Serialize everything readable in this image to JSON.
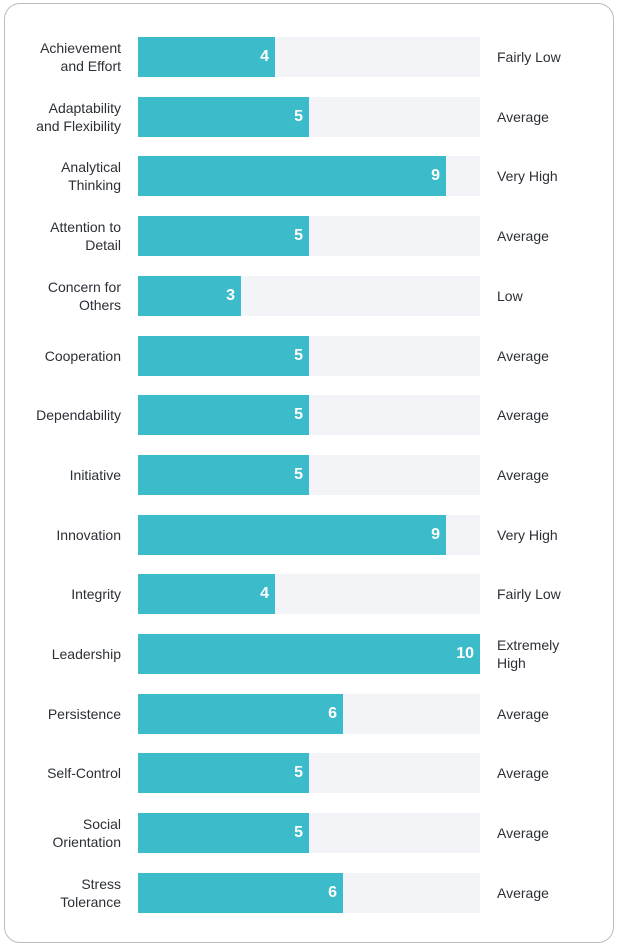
{
  "chart_data": {
    "type": "bar",
    "orientation": "horizontal",
    "xlim": [
      0,
      10
    ],
    "colors": {
      "bar": "#3cbccb",
      "track": "#f3f4f8",
      "label_text": "#2b2f36",
      "score_text": "#ffffff"
    },
    "rows": [
      {
        "label": "Achievement\nand Effort",
        "value": 4,
        "level": "Fairly Low"
      },
      {
        "label": "Adaptability\nand Flexibility",
        "value": 5,
        "level": "Average"
      },
      {
        "label": "Analytical\nThinking",
        "value": 9,
        "level": "Very High"
      },
      {
        "label": "Attention to\nDetail",
        "value": 5,
        "level": "Average"
      },
      {
        "label": "Concern for\nOthers",
        "value": 3,
        "level": "Low"
      },
      {
        "label": "Cooperation",
        "value": 5,
        "level": "Average"
      },
      {
        "label": "Dependability",
        "value": 5,
        "level": "Average"
      },
      {
        "label": "Initiative",
        "value": 5,
        "level": "Average"
      },
      {
        "label": "Innovation",
        "value": 9,
        "level": "Very High"
      },
      {
        "label": "Integrity",
        "value": 4,
        "level": "Fairly Low"
      },
      {
        "label": "Leadership",
        "value": 10,
        "level": "Extremely\nHigh"
      },
      {
        "label": "Persistence",
        "value": 6,
        "level": "Average"
      },
      {
        "label": "Self-Control",
        "value": 5,
        "level": "Average"
      },
      {
        "label": "Social\nOrientation",
        "value": 5,
        "level": "Average"
      },
      {
        "label": "Stress\nTolerance",
        "value": 6,
        "level": "Average"
      }
    ]
  }
}
